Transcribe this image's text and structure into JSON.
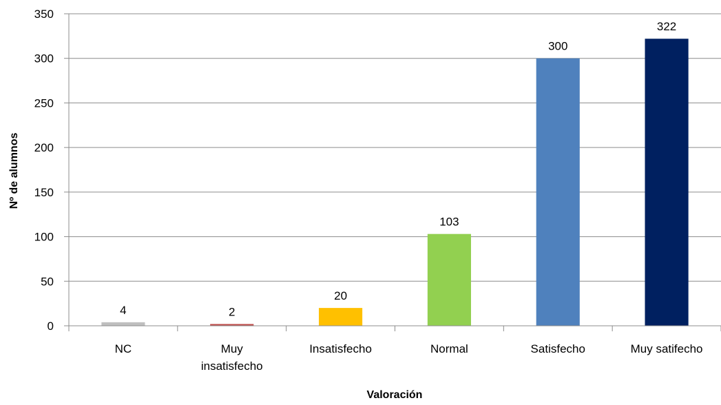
{
  "chart_data": {
    "type": "bar",
    "title": "",
    "xlabel": "Valoración",
    "ylabel": "Nº de alumnos",
    "categories": [
      [
        "NC"
      ],
      [
        "Muy",
        "insatisfecho"
      ],
      [
        "Insatisfecho"
      ],
      [
        "Normal"
      ],
      [
        "Satisfecho"
      ],
      [
        "Muy satifecho"
      ]
    ],
    "values": [
      4,
      2,
      20,
      103,
      300,
      322
    ],
    "data_labels": [
      "4",
      "2",
      "20",
      "103",
      "300",
      "322"
    ],
    "colors": [
      "#BFBFBF",
      "#C0504D",
      "#FFC000",
      "#92D050",
      "#4F81BD",
      "#002060"
    ],
    "ylim": [
      0,
      350
    ],
    "yticks": [
      0,
      50,
      100,
      150,
      200,
      250,
      300,
      350
    ],
    "grid": true,
    "legend": "none"
  }
}
